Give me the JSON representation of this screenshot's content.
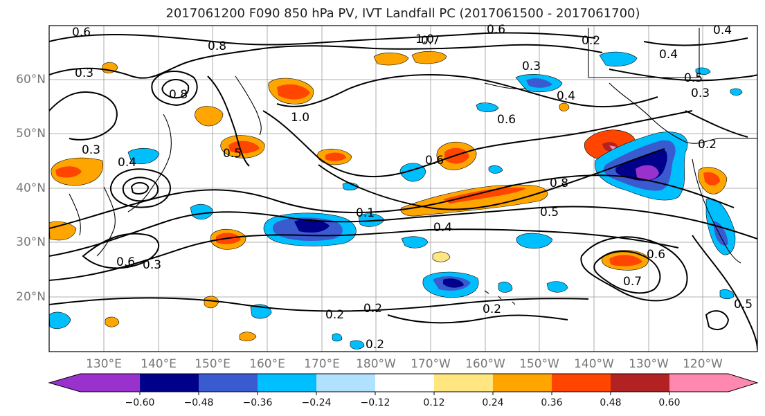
{
  "title": "2017061200 F090 850 hPa PV, IVT Landfall PC (2017061500 - 2017061700)",
  "lat_ticks": [
    "60°N",
    "50°N",
    "40°N",
    "30°N",
    "20°N"
  ],
  "lon_ticks": [
    "130°E",
    "140°E",
    "150°E",
    "160°E",
    "170°E",
    "180°W",
    "170°W",
    "160°W",
    "150°W",
    "140°W",
    "130°W",
    "120°W"
  ],
  "colorbar": {
    "colors": [
      "#9932cc",
      "#00008b",
      "#3a5bcf",
      "#00bfff",
      "#b0e2ff",
      "#ffffff",
      "#ffe680",
      "#ffa500",
      "#ff4500",
      "#b22222",
      "#ff88b0"
    ],
    "labels": [
      "−0.60",
      "−0.48",
      "−0.36",
      "−0.24",
      "−0.12",
      "0.12",
      "0.24",
      "0.36",
      "0.48",
      "0.60"
    ]
  },
  "contour_labels": [
    "0.6",
    "0.8",
    "0.3",
    "0.4",
    "0.5",
    "0.7",
    "1.0",
    "0.2",
    "0.1"
  ]
}
